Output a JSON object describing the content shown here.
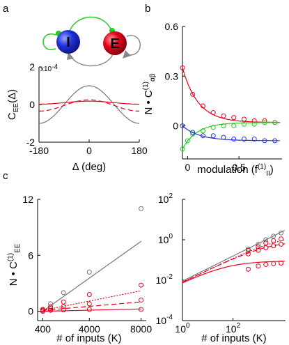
{
  "colors": {
    "gray": "#777777",
    "red": "#e8001c",
    "green": "#22cc22",
    "blue": "#2233dd",
    "axis": "#000000"
  },
  "panel_letters": [
    "a",
    "b",
    "c"
  ],
  "network_diagram": {
    "inhibitory_label": "I",
    "excitatory_label": "E"
  },
  "chart_data": [
    {
      "id": "panel-a",
      "type": "line",
      "xlabel": "Δ (deg)",
      "ylabel": "C_EE(Δ)",
      "ylabel_main": "C",
      "ylabel_sub": "EE",
      "ylabel_tail": "(Δ)",
      "y_multiplier": "x10",
      "y_multiplier_exp": "-4",
      "xlim": [
        -180,
        180
      ],
      "ylim": [
        -2,
        2
      ],
      "xticks": [
        -180,
        0,
        180
      ],
      "xtick_labels": [
        "-180",
        "0",
        "180"
      ],
      "yticks": [
        -2,
        0,
        2
      ],
      "ytick_labels": [
        "-2",
        "0",
        "2"
      ],
      "series": [
        {
          "style": "solid",
          "color": "gray",
          "kind": "cosine",
          "baseline": 0,
          "amplitude": 1.0
        },
        {
          "style": "solid",
          "color": "red",
          "kind": "cosine",
          "baseline": 0.1,
          "amplitude": 0.08
        },
        {
          "style": "dashed",
          "color": "red",
          "kind": "cosine",
          "baseline": -0.05,
          "amplitude": 0.3
        }
      ]
    },
    {
      "id": "panel-b",
      "type": "scatter",
      "xlabel": "modulation (f",
      "xlabel_sup": "(1)",
      "xlabel_sub": "II",
      "xlabel_close": ")",
      "ylabel_main": "N • C",
      "ylabel_sup": "(1)",
      "ylabel_sub": "αβ",
      "xlim": [
        -0.05,
        0.92
      ],
      "ylim": [
        -0.2,
        0.6
      ],
      "xticks": [
        0,
        0.5
      ],
      "xtick_labels": [
        "0",
        "0.5"
      ],
      "yticks": [
        0,
        0.3,
        0.6
      ],
      "ytick_labels": [
        "0",
        "0.3",
        "0.6"
      ],
      "series": [
        {
          "color": "red",
          "x": [
            -0.05,
            0.05,
            0.15,
            0.25,
            0.35,
            0.45,
            0.55,
            0.65,
            0.75,
            0.85
          ],
          "y": [
            0.35,
            0.19,
            0.12,
            0.08,
            0.06,
            0.05,
            0.04,
            0.03,
            0.03,
            0.02
          ],
          "fit": {
            "kind": "exp",
            "a": 0.02,
            "b": 0.33,
            "k": 6.5
          }
        },
        {
          "color": "green",
          "x": [
            -0.05,
            0.0,
            0.05,
            0.15,
            0.25,
            0.35,
            0.45,
            0.55,
            0.65,
            0.75,
            0.85
          ],
          "y": [
            -0.14,
            -0.09,
            -0.05,
            -0.03,
            -0.01,
            0.0,
            0.0,
            0.01,
            0.01,
            0.02,
            0.02
          ],
          "fit": {
            "kind": "exp",
            "a": 0.02,
            "b": -0.16,
            "k": 7.0
          }
        },
        {
          "color": "blue",
          "x": [
            -0.05,
            0.05,
            0.15,
            0.25,
            0.35,
            0.45,
            0.55,
            0.65,
            0.75,
            0.85
          ],
          "y": [
            0.0,
            -0.04,
            -0.06,
            -0.06,
            -0.07,
            -0.08,
            -0.08,
            -0.08,
            -0.09,
            -0.09
          ],
          "fit": {
            "kind": "exp",
            "a": -0.09,
            "b": 0.09,
            "k": 6.0
          }
        }
      ]
    },
    {
      "id": "panel-c-linear",
      "type": "scatter",
      "xlabel": "# of inputs (K)",
      "ylabel_main": "N • C",
      "ylabel_sup": "(1)",
      "ylabel_sub": "EE",
      "xlim": [
        0,
        8400
      ],
      "ylim": [
        -1,
        12
      ],
      "xticks": [
        400,
        4000,
        8000
      ],
      "xtick_labels": [
        "400",
        "4000",
        "8000"
      ],
      "yticks": [
        0,
        6,
        12
      ],
      "ytick_labels": [
        "0",
        "6",
        "12"
      ],
      "series": [
        {
          "color": "gray",
          "style": "solid",
          "x": [
            400,
            1000,
            2000,
            4000,
            8000
          ],
          "y": [
            0.2,
            0.8,
            2.0,
            4.2,
            11.0
          ],
          "fit": [
            [
              400,
              0.0
            ],
            [
              8000,
              7.5
            ]
          ]
        },
        {
          "color": "red",
          "style": "dotted",
          "x": [
            400,
            1000,
            2000,
            4000,
            8000
          ],
          "y": [
            0.2,
            0.5,
            1.0,
            1.8,
            2.8
          ],
          "fit": [
            [
              400,
              0.1
            ],
            [
              8000,
              2.2
            ]
          ]
        },
        {
          "color": "red",
          "style": "dashed",
          "x": [
            400,
            1000,
            2000,
            4000,
            8000
          ],
          "y": [
            0.1,
            0.3,
            0.5,
            0.8,
            1.2
          ],
          "fit": [
            [
              400,
              0.1
            ],
            [
              8000,
              1.0
            ]
          ]
        },
        {
          "color": "red",
          "style": "solid",
          "x": [
            400,
            1000,
            2000,
            4000,
            8000
          ],
          "y": [
            0.0,
            0.1,
            0.15,
            0.2,
            0.2
          ],
          "fit": [
            [
              400,
              0.0
            ],
            [
              8000,
              0.25
            ]
          ]
        }
      ]
    },
    {
      "id": "panel-c-log",
      "type": "scatter",
      "xlabel": "# of inputs (K)",
      "xscale": "log",
      "yscale": "log",
      "xlim": [
        1,
        12000
      ],
      "ylim": [
        0.0001,
        100
      ],
      "xticks": [
        1,
        100
      ],
      "xtick_base": [
        "10",
        "10"
      ],
      "xtick_exp": [
        "0",
        "2"
      ],
      "yticks": [
        0.0001,
        0.01,
        1,
        100
      ],
      "ytick_base": [
        "10",
        "10",
        "10",
        "10"
      ],
      "ytick_exp": [
        "-4",
        "-2",
        "0",
        "2"
      ],
      "series": [
        {
          "color": "gray",
          "style": "solid",
          "x": [
            400,
            1000,
            2000,
            4000,
            8000
          ],
          "y": [
            0.35,
            0.6,
            1.0,
            1.5,
            2.2
          ],
          "fit": {
            "kind": "power",
            "c": 0.009,
            "p": 0.62,
            "sat": 0
          }
        },
        {
          "color": "red",
          "style": "dotted",
          "x": [
            400,
            1000,
            2000,
            4000,
            8000
          ],
          "y": [
            0.3,
            0.45,
            0.7,
            0.9,
            1.1
          ],
          "fit": {
            "kind": "power",
            "c": 0.008,
            "p": 0.6,
            "sat": 1.8
          }
        },
        {
          "color": "red",
          "style": "dashed",
          "x": [
            400,
            1000,
            2000,
            4000,
            8000
          ],
          "y": [
            0.2,
            0.3,
            0.4,
            0.5,
            0.6
          ],
          "fit": {
            "kind": "power",
            "c": 0.008,
            "p": 0.6,
            "sat": 0.9
          }
        },
        {
          "color": "red",
          "style": "solid",
          "x": [
            400,
            1000,
            2000,
            4000,
            8000
          ],
          "y": [
            0.035,
            0.05,
            0.06,
            0.065,
            0.07
          ],
          "fit": {
            "kind": "power",
            "c": 0.008,
            "p": 0.6,
            "sat": 0.09
          }
        }
      ]
    }
  ]
}
